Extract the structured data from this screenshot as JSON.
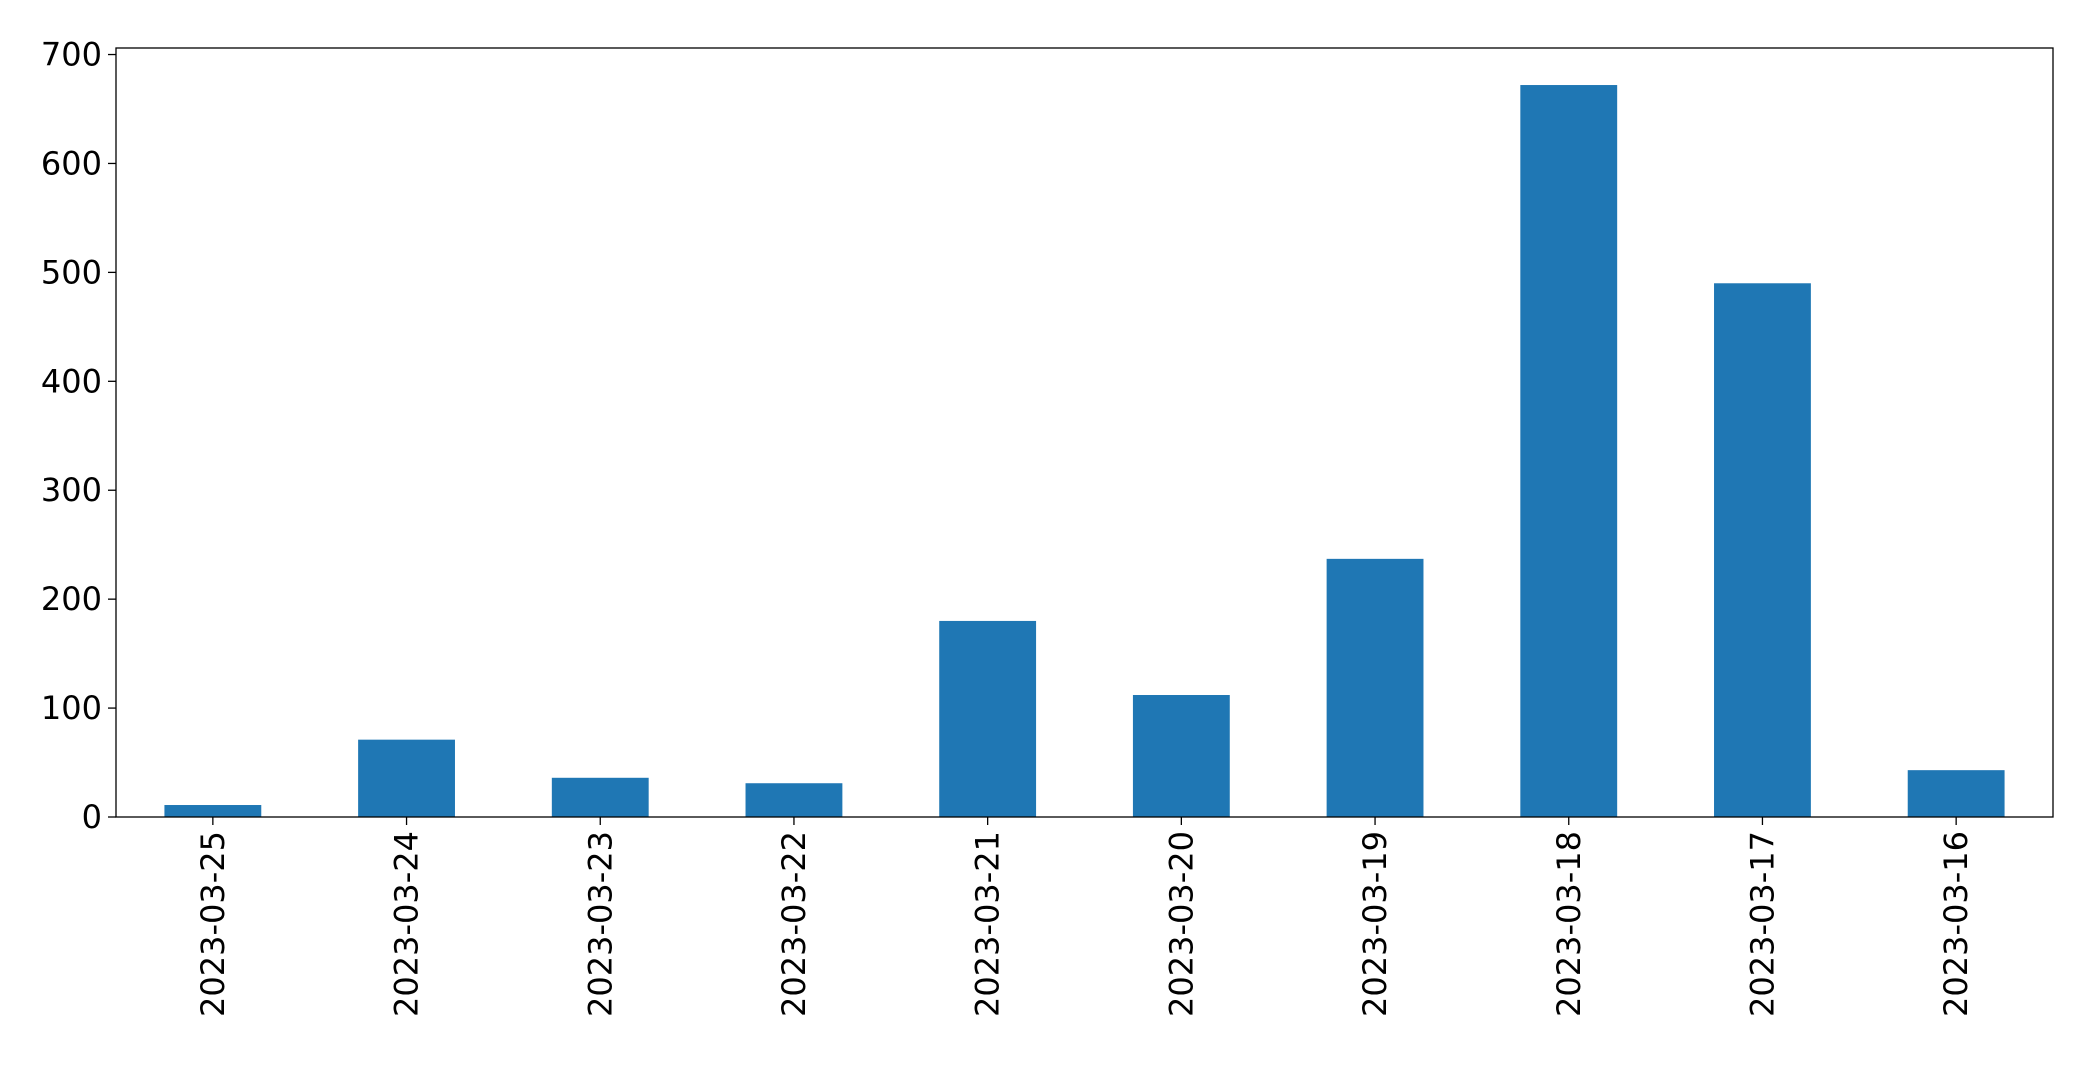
{
  "chart_data": {
    "type": "bar",
    "categories": [
      "2023-03-25",
      "2023-03-24",
      "2023-03-23",
      "2023-03-22",
      "2023-03-21",
      "2023-03-20",
      "2023-03-19",
      "2023-03-18",
      "2023-03-17",
      "2023-03-16"
    ],
    "values": [
      11,
      71,
      36,
      31,
      180,
      112,
      237,
      672,
      490,
      43
    ],
    "color": "#1f77b4",
    "ylim": [
      0,
      706
    ],
    "yticks": [
      0,
      100,
      200,
      300,
      400,
      500,
      600,
      700
    ],
    "grid": false
  }
}
